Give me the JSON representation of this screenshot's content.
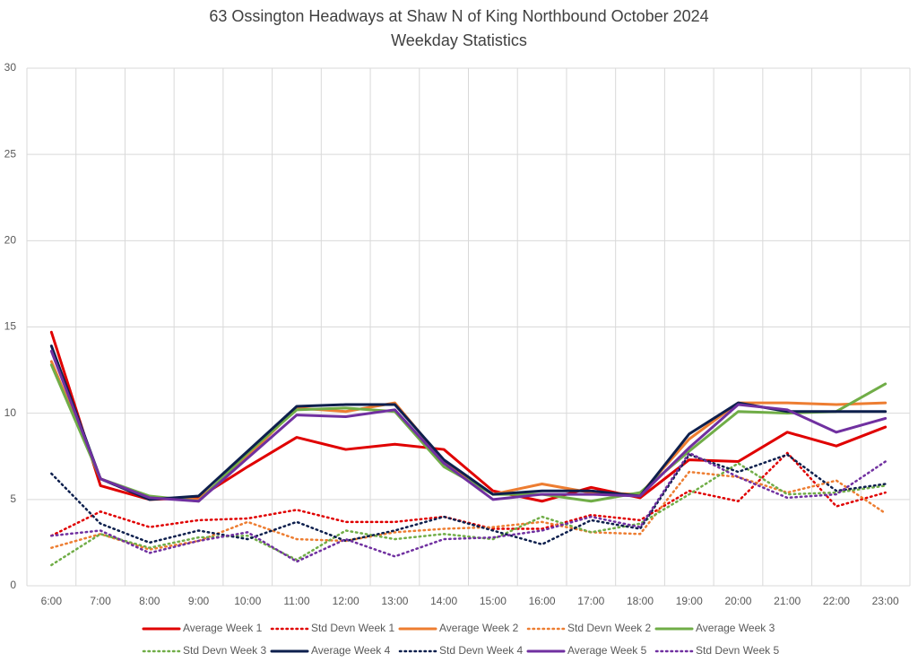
{
  "chart_data": {
    "type": "line",
    "title": "63 Ossington Headways at Shaw N of King Northbound October 2024",
    "subtitle": "Weekday Statistics",
    "categories": [
      "6:00",
      "7:00",
      "8:00",
      "9:00",
      "10:00",
      "11:00",
      "12:00",
      "13:00",
      "14:00",
      "15:00",
      "16:00",
      "17:00",
      "18:00",
      "19:00",
      "20:00",
      "21:00",
      "22:00",
      "23:00"
    ],
    "ylim": [
      0,
      30
    ],
    "yticks": [
      0,
      5,
      10,
      15,
      20,
      25,
      30
    ],
    "grid": true,
    "legend": "bottom",
    "series": [
      {
        "name": "Average Week 1",
        "color": "#e00000",
        "style": "solid",
        "values": [
          14.7,
          5.8,
          5.0,
          5.1,
          6.9,
          8.6,
          7.9,
          8.2,
          7.9,
          5.5,
          4.9,
          5.7,
          5.1,
          7.3,
          7.2,
          8.9,
          8.1,
          9.2
        ]
      },
      {
        "name": "Std Devn Week 1",
        "color": "#e00000",
        "style": "dotted",
        "values": [
          2.9,
          4.3,
          3.4,
          3.8,
          3.9,
          4.4,
          3.7,
          3.7,
          4.0,
          3.3,
          3.3,
          4.1,
          3.8,
          5.5,
          4.9,
          7.7,
          4.6,
          5.4
        ]
      },
      {
        "name": "Average Week 2",
        "color": "#ed7d31",
        "style": "solid",
        "values": [
          13.0,
          6.2,
          5.1,
          5.0,
          7.5,
          10.3,
          10.1,
          10.6,
          7.2,
          5.3,
          5.9,
          5.4,
          5.3,
          8.5,
          10.6,
          10.6,
          10.5,
          10.6
        ]
      },
      {
        "name": "Std Devn Week 2",
        "color": "#ed7d31",
        "style": "dotted",
        "values": [
          2.2,
          3.0,
          2.1,
          2.6,
          3.7,
          2.7,
          2.6,
          3.1,
          3.3,
          3.4,
          3.7,
          3.1,
          3.0,
          6.6,
          6.3,
          5.4,
          6.1,
          4.2
        ]
      },
      {
        "name": "Average Week 3",
        "color": "#70ad47",
        "style": "solid",
        "values": [
          12.8,
          6.2,
          5.2,
          4.9,
          7.7,
          10.2,
          10.3,
          10.1,
          6.9,
          5.3,
          5.3,
          4.9,
          5.4,
          7.8,
          10.1,
          10.0,
          10.1,
          11.7
        ]
      },
      {
        "name": "Std Devn Week 3",
        "color": "#70ad47",
        "style": "dotted",
        "values": [
          1.2,
          3.0,
          2.2,
          2.8,
          2.9,
          1.5,
          3.2,
          2.7,
          3.0,
          2.7,
          4.0,
          3.1,
          3.6,
          5.3,
          7.1,
          5.3,
          5.4,
          5.8
        ]
      },
      {
        "name": "Average Week 4",
        "color": "#0d1f4d",
        "style": "solid",
        "values": [
          13.9,
          6.2,
          5.0,
          5.2,
          7.8,
          10.4,
          10.5,
          10.5,
          7.3,
          5.3,
          5.5,
          5.5,
          5.2,
          8.8,
          10.6,
          10.1,
          10.1,
          10.1
        ]
      },
      {
        "name": "Std Devn Week 4",
        "color": "#0d1f4d",
        "style": "dotted",
        "values": [
          6.5,
          3.6,
          2.5,
          3.2,
          2.7,
          3.7,
          2.6,
          3.2,
          4.0,
          3.2,
          2.4,
          3.8,
          3.3,
          7.6,
          6.6,
          7.6,
          5.5,
          5.9
        ]
      },
      {
        "name": "Average Week 5",
        "color": "#7030a0",
        "style": "solid",
        "values": [
          13.6,
          6.2,
          5.1,
          4.9,
          7.4,
          9.9,
          9.8,
          10.2,
          7.1,
          5.0,
          5.3,
          5.3,
          5.2,
          8.0,
          10.5,
          10.2,
          8.9,
          9.7
        ]
      },
      {
        "name": "Std Devn Week 5",
        "color": "#7030a0",
        "style": "dotted",
        "values": [
          2.9,
          3.2,
          1.9,
          2.6,
          3.1,
          1.4,
          2.7,
          1.7,
          2.7,
          2.8,
          3.2,
          4.0,
          3.4,
          7.7,
          6.3,
          5.1,
          5.3,
          7.2
        ]
      }
    ]
  }
}
